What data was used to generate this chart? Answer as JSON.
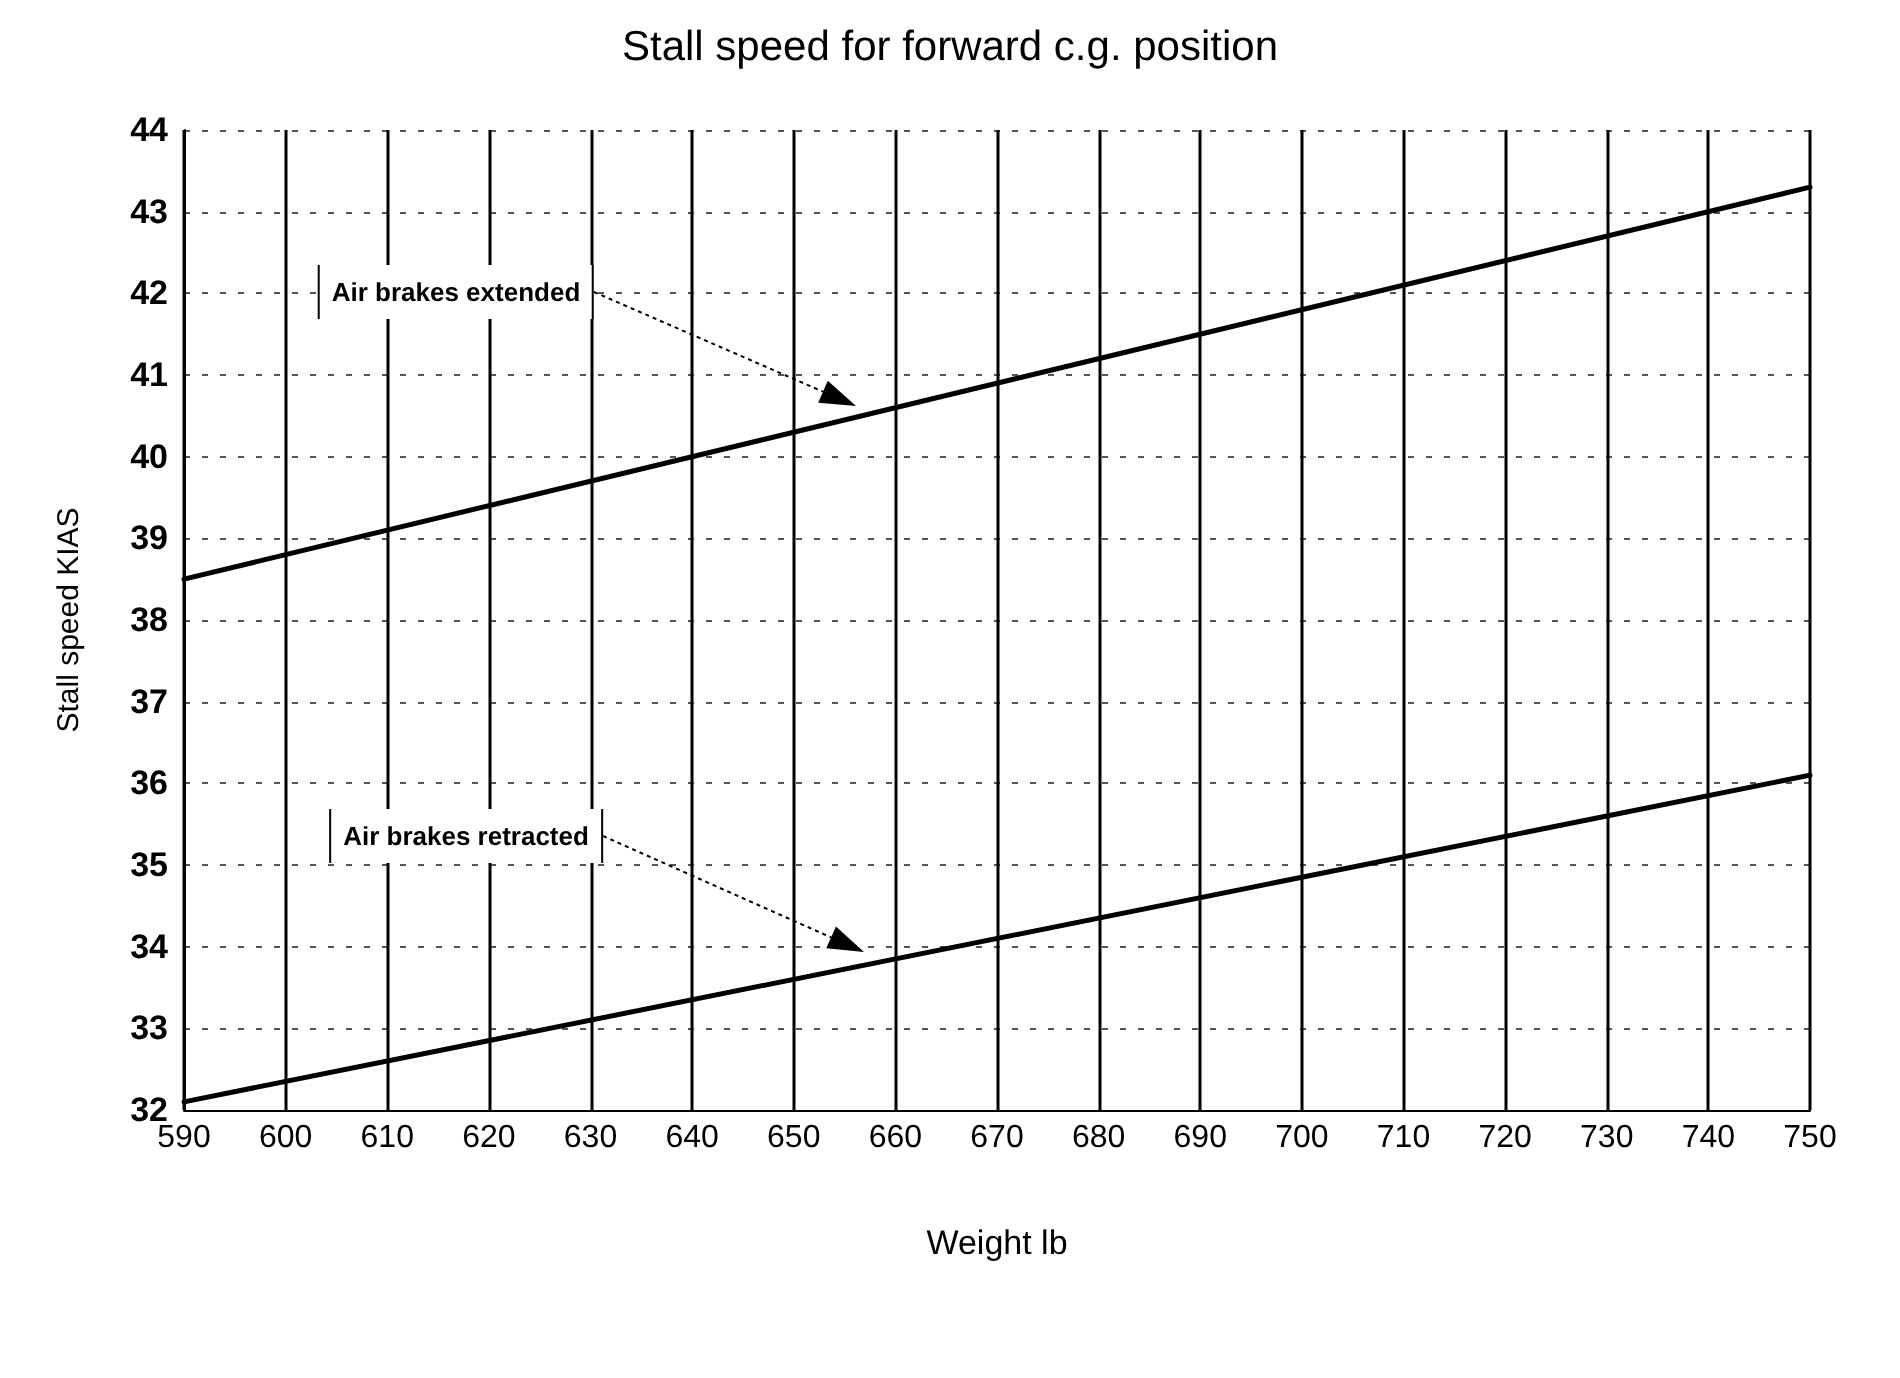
{
  "chart_data": {
    "type": "line",
    "title": "Stall speed for forward c.g. position",
    "xlabel": "Weight lb",
    "ylabel": "Stall speed KIAS",
    "x": [
      590,
      750
    ],
    "series": [
      {
        "color": "#000000",
        "values": [
          38.5,
          43.3
        ]
      },
      {
        "color": "#000000",
        "values": [
          32.1,
          36.1
        ]
      }
    ],
    "annotations": [
      "Air brakes extended",
      "Air brakes retracted"
    ],
    "xlim": [
      590,
      750
    ],
    "xticks": [
      590,
      600,
      610,
      620,
      630,
      640,
      650,
      660,
      670,
      680,
      690,
      700,
      710,
      720,
      730,
      740,
      750
    ],
    "ylim": [
      32,
      44
    ],
    "yticks": [
      32,
      33,
      34,
      35,
      36,
      37,
      38,
      39,
      40,
      41,
      42,
      43,
      44
    ],
    "grid": true,
    "marker": "none",
    "line_style": "solid"
  }
}
